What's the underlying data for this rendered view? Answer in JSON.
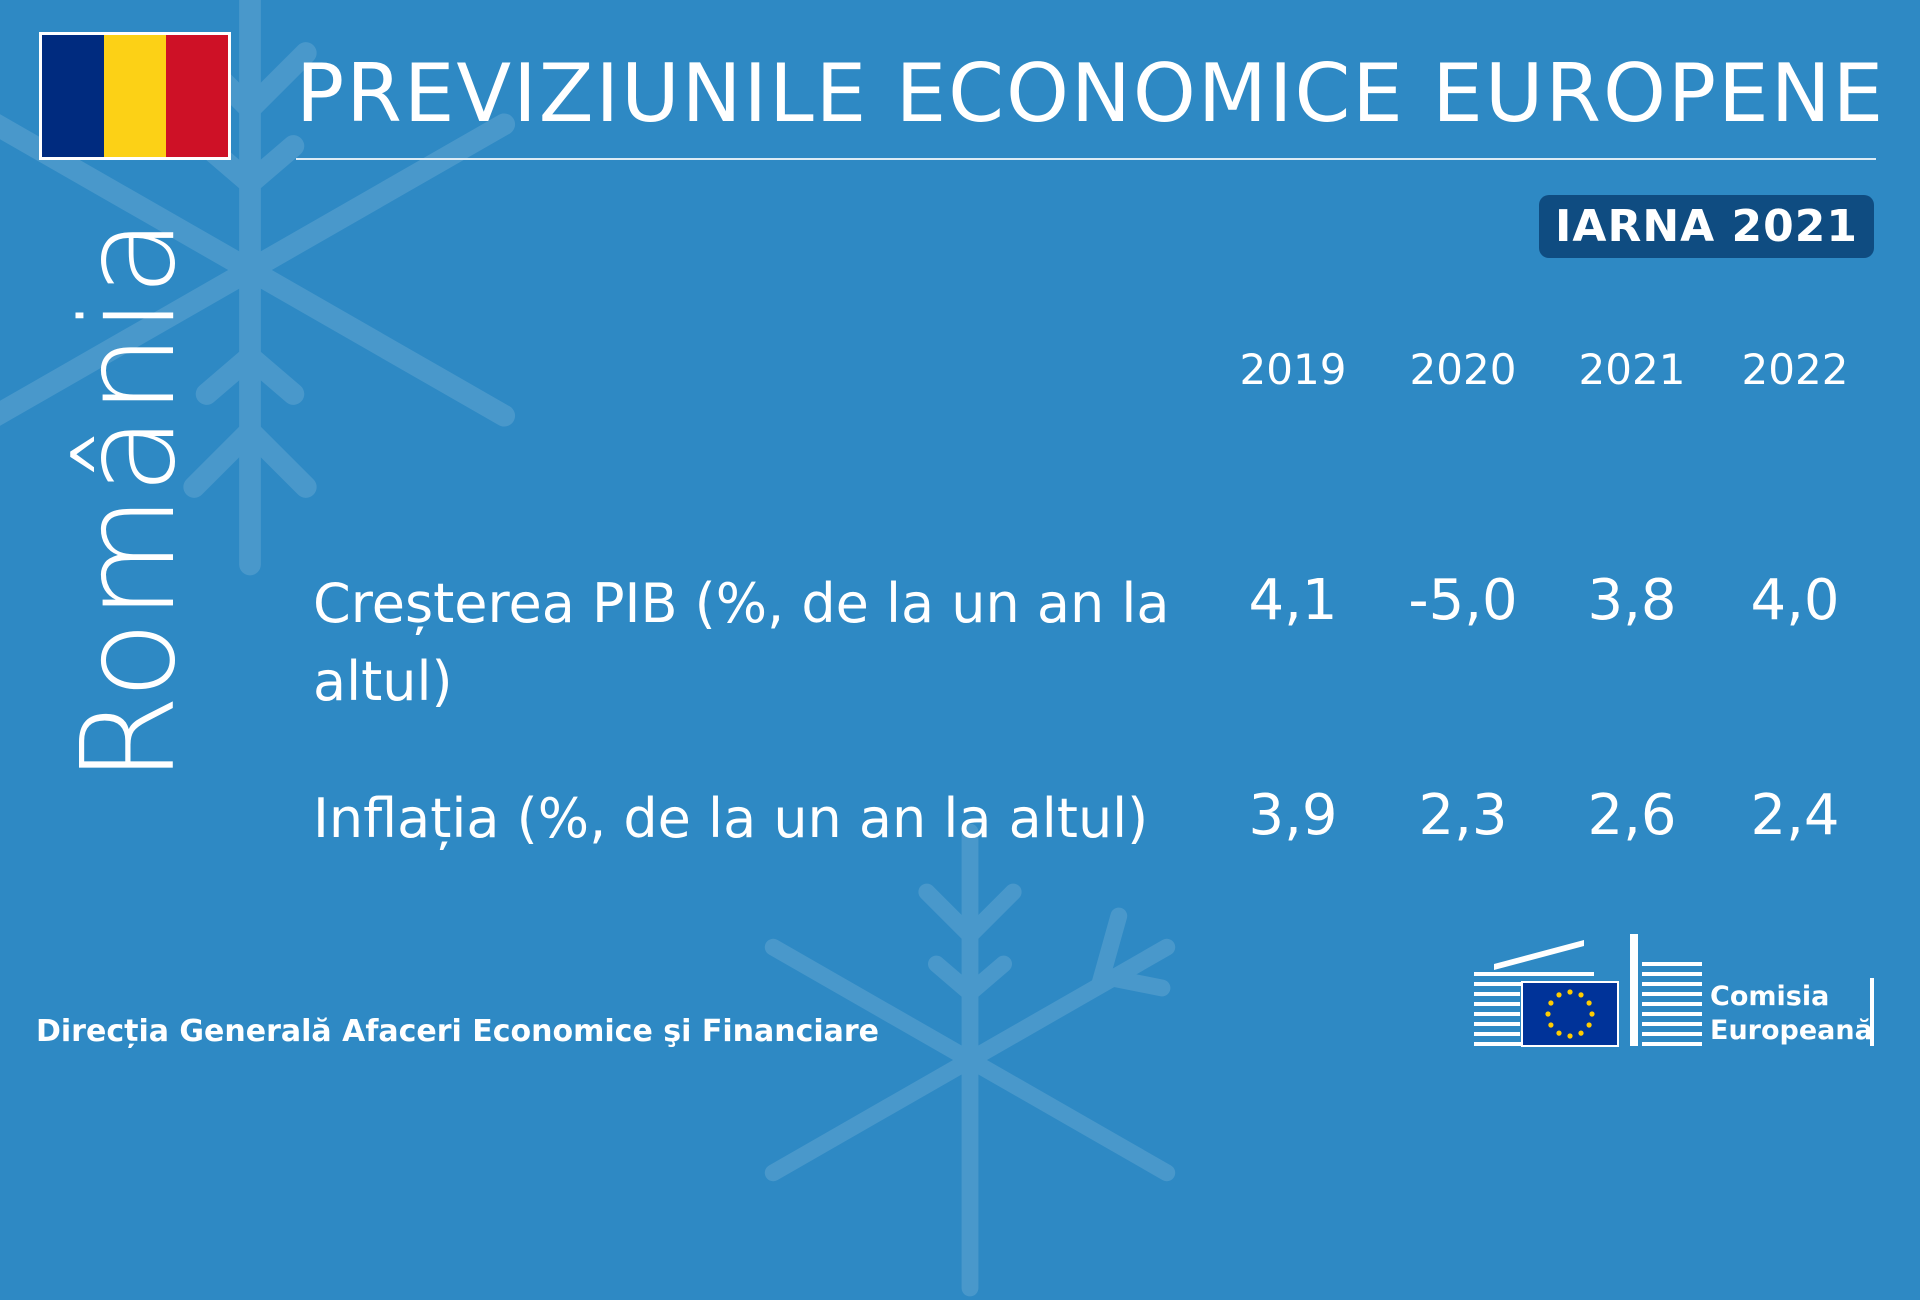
{
  "flag": {
    "colors": [
      "#002b7f",
      "#fcd116",
      "#ce1126"
    ]
  },
  "country": "România",
  "title": "PREVIZIUNILE ECONOMICE EUROPENE",
  "season_badge": "IARNA 2021",
  "table": {
    "years": [
      "2019",
      "2020",
      "2021",
      "2022"
    ],
    "rows": [
      {
        "label": "Creșterea PIB (%, de la un an la altul)",
        "values": [
          "4,1",
          "-5,0",
          "3,8",
          "4,0"
        ]
      },
      {
        "label": "Inflația (%, de la un an la altul)",
        "values": [
          "3,9",
          "2,3",
          "2,6",
          "2,4"
        ]
      }
    ]
  },
  "footer": {
    "department": "Direcția Generală Afaceri Economice şi Financiare"
  },
  "logo": {
    "line1": "Comisia",
    "line2": "Europeană",
    "icon": "european-commission-logo"
  },
  "colors": {
    "background": "#2e89c4",
    "badge": "#0f4c81",
    "eu_blue": "#003399",
    "eu_star": "#ffcc00"
  }
}
